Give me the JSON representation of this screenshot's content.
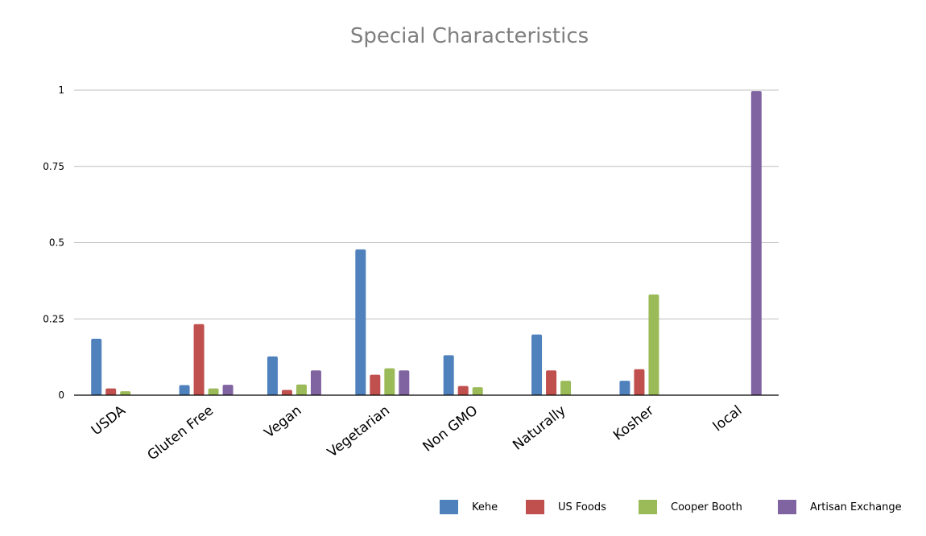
{
  "chart_data": {
    "type": "bar",
    "title": "Special Characteristics",
    "xlabel": "",
    "ylabel": "",
    "ylim": [
      0,
      1
    ],
    "yticks": [
      "0",
      "0.25",
      "0.5",
      "0.75",
      "1"
    ],
    "grid": true,
    "legend_position": "bottom-right",
    "categories": [
      "USDA",
      "Gluten Free",
      "Vegan",
      "Vegetarian",
      "Non GMO",
      "Naturally",
      "Kosher",
      "local"
    ],
    "series": [
      {
        "name": "Kehe",
        "color": "#4f81bd",
        "values": [
          0.185,
          0.033,
          0.127,
          0.478,
          0.131,
          0.199,
          0.047,
          0
        ]
      },
      {
        "name": "US Foods",
        "color": "#c0504d",
        "values": [
          0.022,
          0.233,
          0.017,
          0.067,
          0.03,
          0.081,
          0.085,
          0
        ]
      },
      {
        "name": "Cooper Booth",
        "color": "#9bbb59",
        "values": [
          0.013,
          0.022,
          0.035,
          0.088,
          0.026,
          0.047,
          0.33,
          0
        ]
      },
      {
        "name": "Artisan Exchange",
        "color": "#8064a2",
        "values": [
          0,
          0.034,
          0.081,
          0.081,
          0,
          0,
          0,
          0.997
        ]
      }
    ]
  }
}
